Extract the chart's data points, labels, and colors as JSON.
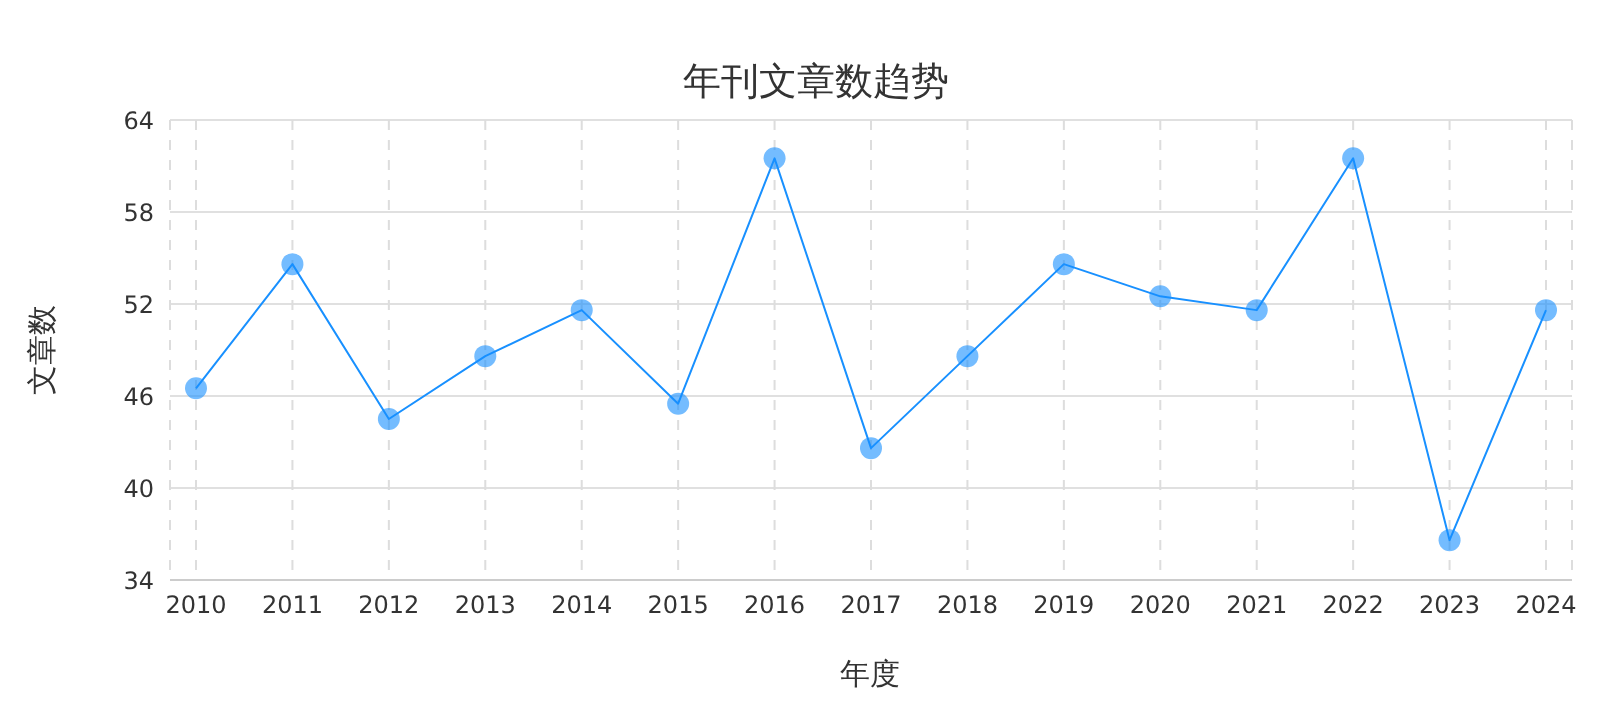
{
  "chart_data": {
    "type": "line",
    "title": "年刊文章数趋势",
    "xlabel": "年度",
    "ylabel": "文章数",
    "categories": [
      "2010",
      "2011",
      "2012",
      "2013",
      "2014",
      "2015",
      "2016",
      "2017",
      "2018",
      "2019",
      "2020",
      "2021",
      "2022",
      "2023",
      "2024"
    ],
    "series": [
      {
        "color": "#1890ff",
        "values": [
          46.5,
          54.6,
          44.5,
          48.6,
          51.6,
          45.5,
          61.5,
          42.6,
          48.6,
          54.6,
          52.5,
          51.6,
          61.5,
          36.6,
          51.6
        ]
      }
    ],
    "ylim": [
      34,
      64
    ],
    "yticks": [
      34,
      40,
      46,
      52,
      58,
      64
    ],
    "grid": true,
    "marker": "circle",
    "line_style": "solid",
    "legend": false
  }
}
